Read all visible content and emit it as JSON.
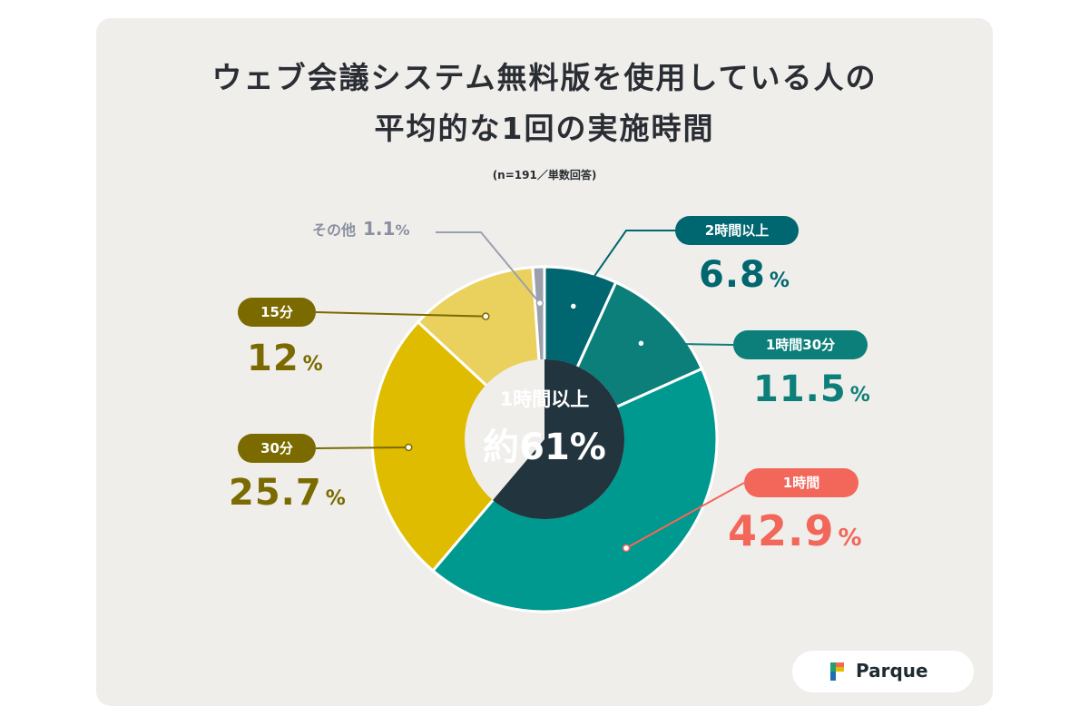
{
  "title_line1": "ウェブ会議システム無料版を使用している人の",
  "title_line2": "平均的な1回の実施時間",
  "subtitle": "(n=191／単数回答)",
  "center": {
    "line1": "1時間以上",
    "line2": "約61%"
  },
  "logo": {
    "text": "Parque"
  },
  "colors": {
    "two_hours": "#006670",
    "one_thirty": "#0d7f7a",
    "one_hour": "#009990",
    "thirty_min": "#e0bc00",
    "fifteen_min": "#ead15e",
    "other": "#9aa0ac",
    "center": "#22343d",
    "red_label": "#f2675a",
    "olive_label": "#7a6a00"
  },
  "chart_data": {
    "type": "pie",
    "categories": [
      "2時間以上",
      "1時間30分",
      "1時間",
      "30分",
      "15分",
      "その他"
    ],
    "values": [
      6.8,
      11.5,
      42.9,
      25.7,
      12,
      1.1
    ],
    "labels": {
      "two_hours": {
        "name": "2時間以上",
        "value": "6.8",
        "unit": "%"
      },
      "one_thirty": {
        "name": "1時間30分",
        "value": "11.5",
        "unit": "%"
      },
      "one_hour": {
        "name": "1時間",
        "value": "42.9",
        "unit": "%"
      },
      "thirty_min": {
        "name": "30分",
        "value": "25.7",
        "unit": "%"
      },
      "fifteen_min": {
        "name": "15分",
        "value": "12",
        "unit": "%"
      },
      "other": {
        "name": "その他",
        "value": "1.1",
        "unit": "%"
      }
    }
  }
}
